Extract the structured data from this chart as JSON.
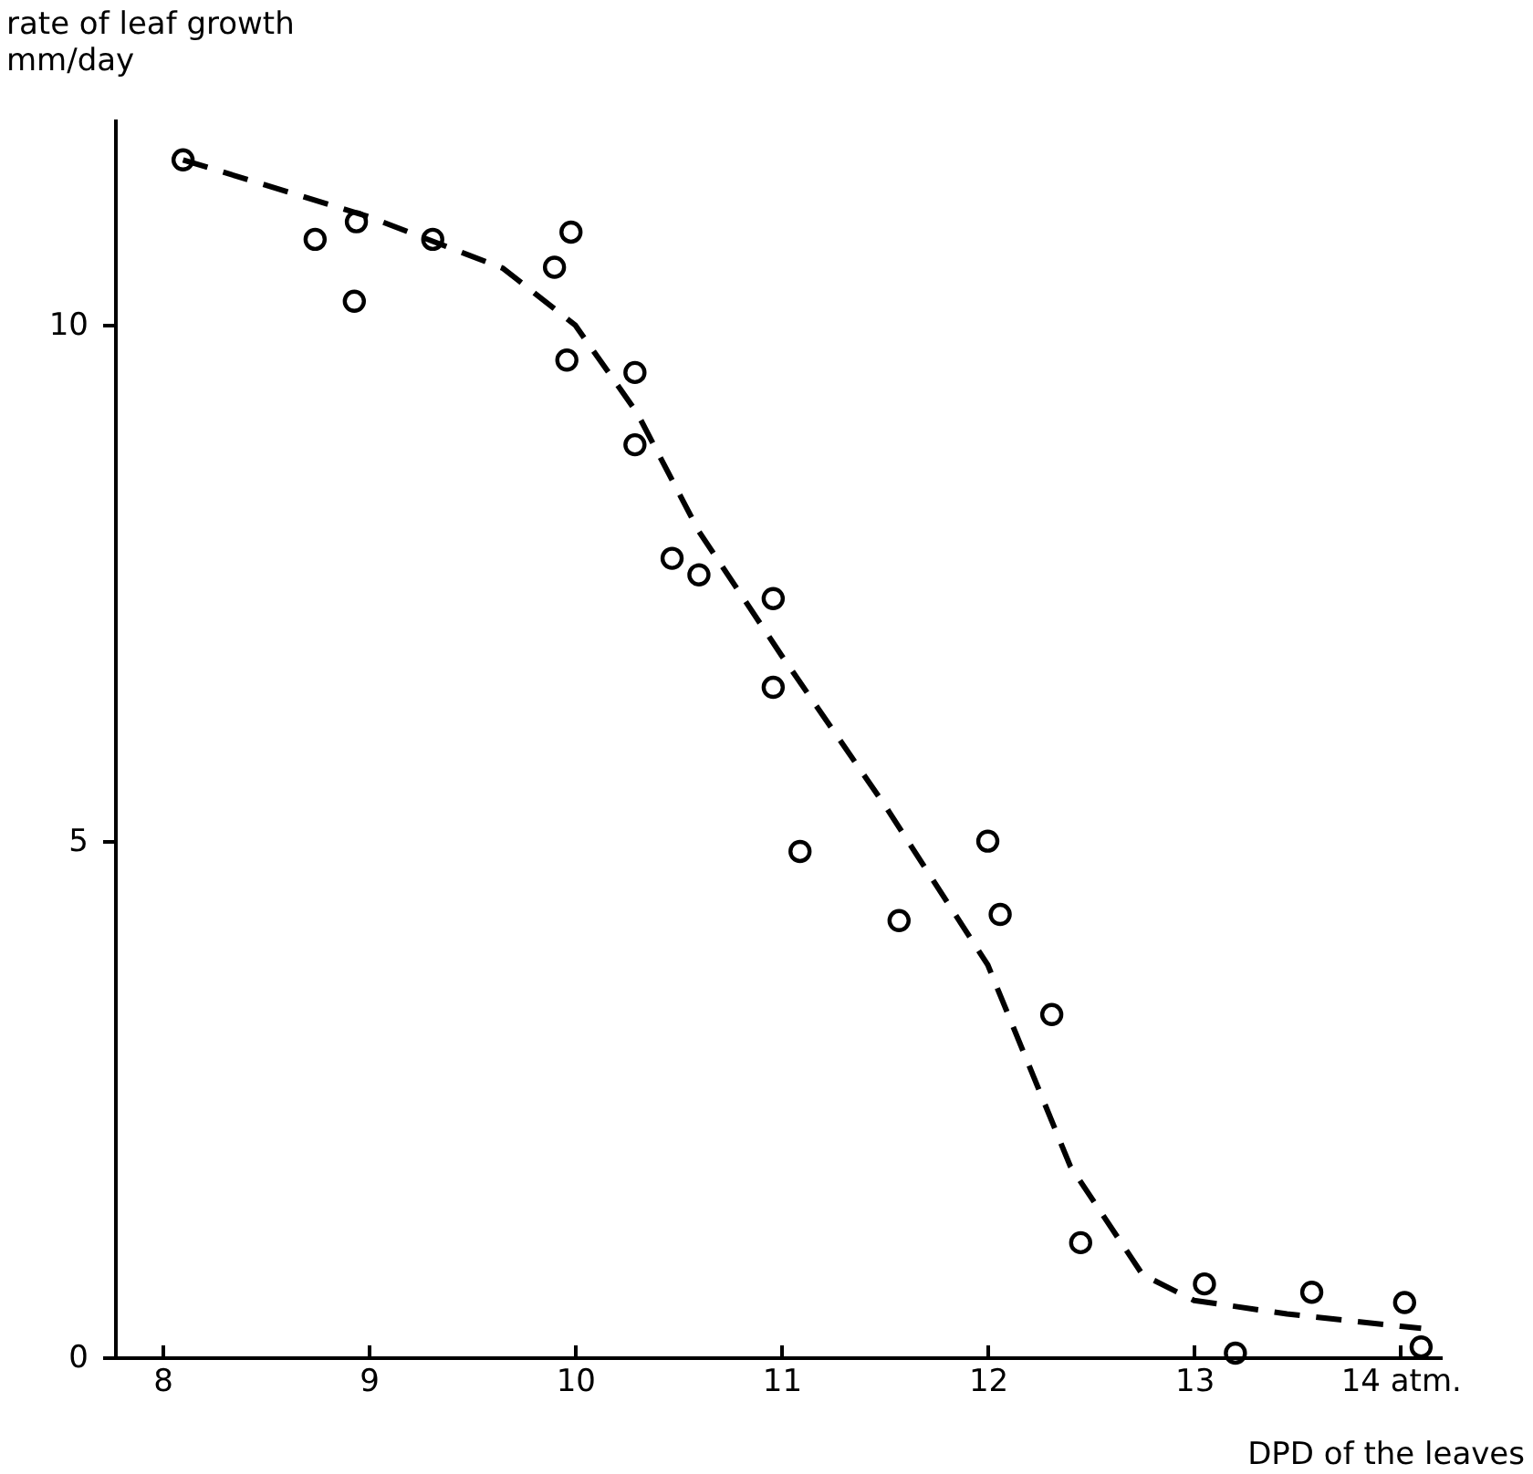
{
  "chart_data": {
    "type": "scatter",
    "xlabel": "DPD of the leaves",
    "ylabel": "rate of leaf growth\nmm/day",
    "xlim": [
      7.77,
      14.2
    ],
    "ylim": [
      0,
      12
    ],
    "xticks": [
      8,
      9,
      10,
      11,
      12,
      13,
      {
        "value": 14,
        "label": "14 atm."
      }
    ],
    "yticks": [
      0,
      5,
      10
    ],
    "grid": false,
    "series": [
      {
        "color": "#000000",
        "marker": "circle",
        "x": [
          8.1,
          8.74,
          8.94,
          8.93,
          9.31,
          9.9,
          9.98,
          9.96,
          10.29,
          10.29,
          10.47,
          10.6,
          10.96,
          10.96,
          11.09,
          11.57,
          12.0,
          12.06,
          12.31,
          12.45,
          13.05,
          13.2,
          13.57,
          14.02,
          14.1
        ],
        "values": [
          11.6,
          10.83,
          11.0,
          10.23,
          10.83,
          10.56,
          10.9,
          9.66,
          9.54,
          8.84,
          7.74,
          7.58,
          7.35,
          6.49,
          4.9,
          4.23,
          5.0,
          4.29,
          3.32,
          1.11,
          0.71,
          0.04,
          0.63,
          0.53,
          0.1
        ]
      },
      {
        "type": "line",
        "color": "#000000",
        "marker": "none",
        "line_style": "dashed",
        "x": [
          8.1,
          9.0,
          9.65,
          10.0,
          10.3,
          10.6,
          11.0,
          11.5,
          12.0,
          12.4,
          12.75,
          13.0,
          13.45,
          14.0,
          14.1
        ],
        "values": [
          11.6,
          11.05,
          10.55,
          10.0,
          9.15,
          8.0,
          6.8,
          5.35,
          3.8,
          1.85,
          0.8,
          0.55,
          0.42,
          0.3,
          0.28
        ]
      }
    ]
  }
}
